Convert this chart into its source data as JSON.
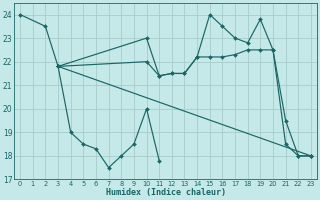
{
  "xlabel": "Humidex (Indice chaleur)",
  "bg_color": "#c5e8e8",
  "grid_color": "#a8cccc",
  "line_color": "#1a6666",
  "xlim": [
    -0.5,
    23.5
  ],
  "ylim": [
    17,
    24.5
  ],
  "yticks": [
    17,
    18,
    19,
    20,
    21,
    22,
    23,
    24
  ],
  "xticks": [
    0,
    1,
    2,
    3,
    4,
    5,
    6,
    7,
    8,
    9,
    10,
    11,
    12,
    13,
    14,
    15,
    16,
    17,
    18,
    19,
    20,
    21,
    22,
    23
  ],
  "series": [
    {
      "x": [
        0,
        2,
        3,
        4,
        5,
        6,
        7,
        8,
        9,
        10,
        11
      ],
      "y": [
        24.0,
        23.5,
        21.8,
        19.0,
        18.5,
        18.3,
        17.5,
        18.0,
        18.5,
        20.0,
        17.8
      ]
    },
    {
      "x": [
        3,
        10,
        11,
        12,
        13,
        14,
        15,
        16,
        17,
        18,
        19,
        20,
        21,
        22,
        23
      ],
      "y": [
        21.8,
        23.0,
        21.4,
        21.5,
        21.5,
        22.2,
        24.0,
        23.5,
        23.0,
        22.8,
        23.8,
        22.5,
        19.5,
        18.0,
        18.0
      ]
    },
    {
      "x": [
        3,
        10,
        11,
        12,
        13,
        14,
        15,
        16,
        17,
        18,
        19,
        20,
        21,
        22,
        23
      ],
      "y": [
        21.8,
        22.0,
        21.4,
        21.5,
        21.5,
        22.2,
        22.2,
        22.2,
        22.3,
        22.5,
        22.5,
        22.5,
        18.5,
        18.0,
        18.0
      ]
    },
    {
      "x": [
        3,
        23
      ],
      "y": [
        21.8,
        18.0
      ]
    }
  ]
}
